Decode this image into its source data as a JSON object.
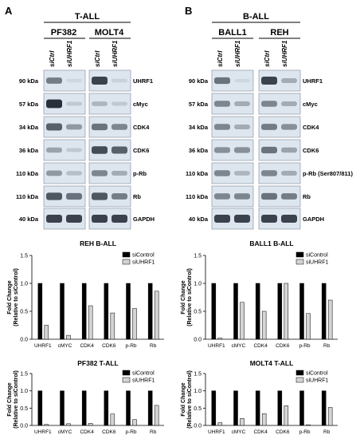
{
  "panels": {
    "A": {
      "letter": "A",
      "group": "T-ALL",
      "lines": [
        {
          "name": "PF382",
          "lanes": [
            "siCtrl",
            "siUHRF1"
          ]
        },
        {
          "name": "MOLT4",
          "lanes": [
            "siCtrl",
            "siUHRF1"
          ]
        }
      ],
      "kda": [
        "90 kDa",
        "57 kDa",
        "34 kDa",
        "36 kDa",
        "110 kDa",
        "110 kDa",
        "40 kDa"
      ],
      "proteins": [
        "UHRF1",
        "cMyc",
        "CDK4",
        "CDK6",
        "p-Rb",
        "Rb",
        "GAPDH"
      ]
    },
    "B": {
      "letter": "B",
      "group": "B-ALL",
      "lines": [
        {
          "name": "BALL1",
          "lanes": [
            "siCtrl",
            "siUHRF1"
          ]
        },
        {
          "name": "REH",
          "lanes": [
            "siCtrl",
            "siUHRF1"
          ]
        }
      ],
      "kda": [
        "90 kDa",
        "57 kDa",
        "34 kDa",
        "36 kDa",
        "110 kDa",
        "110 kDa",
        "40 kDa"
      ],
      "proteins": [
        "UHRF1",
        "cMyc",
        "CDK4",
        "CDK6",
        "p-Rb (Ser807/811)",
        "Rb",
        "GAPDH"
      ]
    }
  },
  "blot_bands": {
    "colors": {
      "band": "#1e2530",
      "membrane": "#dde6ef"
    },
    "A": [
      {
        "PF382": [
          0.55,
          0.08
        ],
        "MOLT4": [
          0.85,
          0.1
        ]
      },
      {
        "PF382": [
          0.95,
          0.15
        ],
        "MOLT4": [
          0.25,
          0.15
        ]
      },
      {
        "PF382": [
          0.7,
          0.4
        ],
        "MOLT4": [
          0.6,
          0.5
        ]
      },
      {
        "PF382": [
          0.35,
          0.15
        ],
        "MOLT4": [
          0.8,
          0.7
        ]
      },
      {
        "PF382": [
          0.4,
          0.2
        ],
        "MOLT4": [
          0.5,
          0.3
        ]
      },
      {
        "PF382": [
          0.75,
          0.6
        ],
        "MOLT4": [
          0.75,
          0.55
        ]
      },
      {
        "PF382": [
          0.85,
          0.85
        ],
        "MOLT4": [
          0.85,
          0.85
        ]
      }
    ],
    "B": [
      {
        "BALL1": [
          0.6,
          0.05
        ],
        "REH": [
          0.85,
          0.3
        ]
      },
      {
        "BALL1": [
          0.5,
          0.3
        ],
        "REH": [
          0.5,
          0.3
        ]
      },
      {
        "BALL1": [
          0.5,
          0.3
        ],
        "REH": [
          0.55,
          0.45
        ]
      },
      {
        "BALL1": [
          0.45,
          0.45
        ],
        "REH": [
          0.6,
          0.35
        ]
      },
      {
        "BALL1": [
          0.5,
          0.25
        ],
        "REH": [
          0.5,
          0.3
        ]
      },
      {
        "BALL1": [
          0.5,
          0.5
        ],
        "REH": [
          0.6,
          0.55
        ]
      },
      {
        "BALL1": [
          0.85,
          0.85
        ],
        "REH": [
          0.85,
          0.85
        ]
      }
    ]
  },
  "chart_data": [
    {
      "type": "bar",
      "title": "REH B-ALL",
      "ylabel_line1": "Fold Change",
      "ylabel_line2": "(Relative to siControl)",
      "categories": [
        "UHRF1",
        "cMYC",
        "CDK4",
        "CDK6",
        "p-Rb",
        "Rb"
      ],
      "series": [
        {
          "name": "siControl",
          "values": [
            1.0,
            1.0,
            1.0,
            1.0,
            1.0,
            1.0
          ],
          "color": "#000000"
        },
        {
          "name": "siUHRF1",
          "values": [
            0.25,
            0.07,
            0.6,
            0.47,
            0.55,
            0.86
          ],
          "color": "#d4d4d4"
        }
      ],
      "ylim": [
        0,
        1.5
      ],
      "yticks": [
        "0.0",
        "0.5",
        "1.0",
        "1.5"
      ],
      "legend": "top-right"
    },
    {
      "type": "bar",
      "title": "BALL1 B-ALL",
      "ylabel_line1": "Fold Change",
      "ylabel_line2": "(Relative to siControl)",
      "categories": [
        "UHRF1",
        "cMYC",
        "CDK4",
        "CDK6",
        "p-Rb",
        "Rb"
      ],
      "series": [
        {
          "name": "siControl",
          "values": [
            1.0,
            1.0,
            1.0,
            1.0,
            1.0,
            1.0
          ],
          "color": "#000000"
        },
        {
          "name": "siUHRF1",
          "values": [
            0.02,
            0.66,
            0.5,
            1.0,
            0.46,
            0.7
          ],
          "color": "#d4d4d4"
        }
      ],
      "ylim": [
        0,
        1.5
      ],
      "yticks": [
        "0.0",
        "0.5",
        "1.0",
        "1.5"
      ],
      "legend": "top-right"
    },
    {
      "type": "bar",
      "title": "PF382 T-ALL",
      "ylabel_line1": "Fold Change",
      "ylabel_line2": "(Relative to siControl)",
      "categories": [
        "UHRF1",
        "cMYC",
        "CDK4",
        "CDK6",
        "p-Rb",
        "Rb"
      ],
      "series": [
        {
          "name": "siControl",
          "values": [
            1.0,
            1.0,
            1.0,
            1.0,
            1.0,
            1.0
          ],
          "color": "#000000"
        },
        {
          "name": "siUHRF1",
          "values": [
            0.03,
            0.05,
            0.06,
            0.33,
            0.17,
            0.58
          ],
          "color": "#d4d4d4"
        }
      ],
      "ylim": [
        0,
        1.5
      ],
      "yticks": [
        "0.0",
        "0.5",
        "1.0",
        "1.5"
      ],
      "legend": "top-right"
    },
    {
      "type": "bar",
      "title": "MOLT4 T-ALL",
      "ylabel_line1": "Fold Change",
      "ylabel_line2": "(Relative to siControl)",
      "categories": [
        "UHRF1",
        "cMYC",
        "CDK4",
        "CDK6",
        "p-Rb",
        "Rb"
      ],
      "series": [
        {
          "name": "siControl",
          "values": [
            1.0,
            1.0,
            1.0,
            1.0,
            1.0,
            1.0
          ],
          "color": "#000000"
        },
        {
          "name": "siUHRF1",
          "values": [
            0.08,
            0.2,
            0.34,
            0.57,
            0.02,
            0.52
          ],
          "color": "#d4d4d4"
        }
      ],
      "ylim": [
        0,
        1.5
      ],
      "yticks": [
        "0.0",
        "0.5",
        "1.0",
        "1.5"
      ],
      "legend": "top-right"
    }
  ]
}
